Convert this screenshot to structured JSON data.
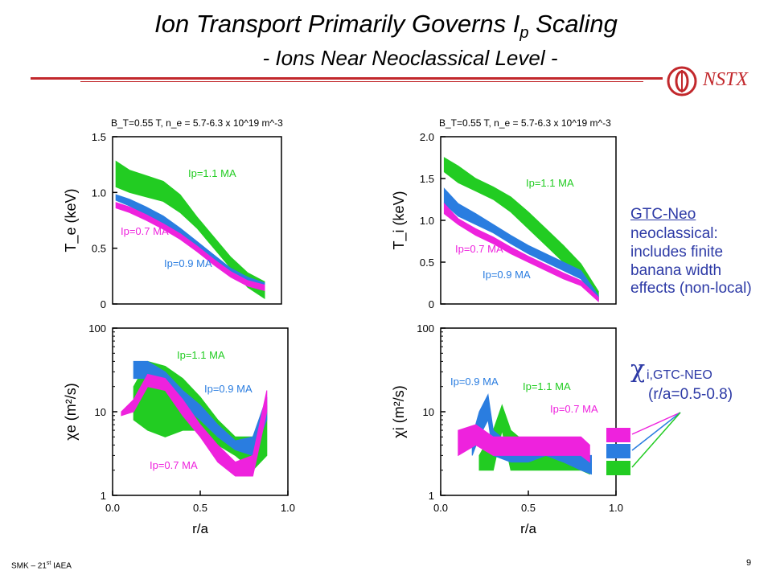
{
  "slide": {
    "title_main": "Ion Transport Primarily Governs I",
    "title_sub": "p",
    "title_tail": " Scaling",
    "subtitle": "- Ions Near Neoclassical Level -",
    "logo_text": "NSTX",
    "footer_left_a": "SMK – 21",
    "footer_left_sup": "st",
    "footer_left_b": " IAEA",
    "page_number": "9"
  },
  "annotation": {
    "gtc_heading": "GTC-Neo",
    "gtc_body": "neoclassical: includes finite banana width effects (non-local)",
    "chi_symbol": "χ",
    "chi_subscript": "i,GTC-NEO",
    "chi_range": "(r/a=0.5-0.8)"
  },
  "colors": {
    "ip07": "#ee22dd",
    "ip09": "#2a7de0",
    "ip11": "#22cc22",
    "text_blue": "#2d3aa6",
    "accent_red": "#c2282c"
  },
  "chart_data": [
    {
      "id": "te",
      "type": "area",
      "header": "B_T=0.55 T, n_e = 5.7-6.3 x 10^19 m^-3",
      "xlabel": "",
      "ylabel": "T_e (keV)",
      "xlim": [
        0,
        1
      ],
      "ylim": [
        0,
        1.5
      ],
      "yscale": "linear",
      "yticks": [
        "0",
        "0.5",
        "1.0",
        "1.5"
      ],
      "xticks": [],
      "series": [
        {
          "name": "Ip=1.1 MA",
          "color": "#22cc22",
          "x": [
            0.02,
            0.1,
            0.2,
            0.3,
            0.4,
            0.5,
            0.6,
            0.7,
            0.8,
            0.9
          ],
          "lower": [
            1.05,
            1.0,
            0.96,
            0.92,
            0.82,
            0.68,
            0.5,
            0.32,
            0.15,
            0.05
          ],
          "upper": [
            1.28,
            1.2,
            1.15,
            1.1,
            0.98,
            0.78,
            0.6,
            0.42,
            0.28,
            0.2
          ]
        },
        {
          "name": "Ip=0.9 MA",
          "color": "#2a7de0",
          "x": [
            0.02,
            0.1,
            0.2,
            0.3,
            0.4,
            0.5,
            0.6,
            0.7,
            0.8,
            0.9
          ],
          "lower": [
            0.93,
            0.88,
            0.8,
            0.72,
            0.62,
            0.5,
            0.38,
            0.26,
            0.18,
            0.14
          ],
          "upper": [
            0.98,
            0.94,
            0.87,
            0.79,
            0.68,
            0.56,
            0.44,
            0.32,
            0.24,
            0.19
          ]
        },
        {
          "name": "Ip=0.7 MA",
          "color": "#ee22dd",
          "x": [
            0.02,
            0.1,
            0.2,
            0.3,
            0.4,
            0.5,
            0.6,
            0.7,
            0.8,
            0.9
          ],
          "lower": [
            0.86,
            0.82,
            0.75,
            0.67,
            0.58,
            0.47,
            0.35,
            0.24,
            0.16,
            0.12
          ],
          "upper": [
            0.91,
            0.87,
            0.8,
            0.72,
            0.63,
            0.52,
            0.4,
            0.29,
            0.21,
            0.17
          ]
        }
      ],
      "annotations": [
        "Ip=1.1 MA",
        "Ip=0.7 MA",
        "Ip=0.9 MA"
      ]
    },
    {
      "id": "ti",
      "type": "area",
      "header": "B_T=0.55 T, n_e = 5.7-6.3 x 10^19 m^-3",
      "xlabel": "",
      "ylabel": "T_i (keV)",
      "xlim": [
        0,
        1
      ],
      "ylim": [
        0,
        2.0
      ],
      "yscale": "linear",
      "yticks": [
        "0",
        "0.5",
        "1.0",
        "1.5",
        "2.0"
      ],
      "xticks": [],
      "series": [
        {
          "name": "Ip=1.1 MA",
          "color": "#22cc22",
          "x": [
            0.02,
            0.1,
            0.2,
            0.3,
            0.4,
            0.5,
            0.6,
            0.7,
            0.8,
            0.9
          ],
          "lower": [
            1.58,
            1.45,
            1.35,
            1.25,
            1.1,
            0.9,
            0.7,
            0.5,
            0.3,
            0.05
          ],
          "upper": [
            1.75,
            1.65,
            1.5,
            1.4,
            1.28,
            1.1,
            0.9,
            0.7,
            0.48,
            0.15
          ]
        },
        {
          "name": "Ip=0.9 MA",
          "color": "#2a7de0",
          "x": [
            0.02,
            0.1,
            0.2,
            0.3,
            0.4,
            0.5,
            0.6,
            0.7,
            0.8,
            0.9
          ],
          "lower": [
            1.2,
            1.05,
            0.95,
            0.85,
            0.72,
            0.6,
            0.5,
            0.4,
            0.3,
            0.05
          ],
          "upper": [
            1.38,
            1.2,
            1.08,
            0.95,
            0.82,
            0.7,
            0.6,
            0.5,
            0.4,
            0.1
          ]
        },
        {
          "name": "Ip=0.7 MA",
          "color": "#ee22dd",
          "x": [
            0.02,
            0.1,
            0.2,
            0.3,
            0.4,
            0.5,
            0.6,
            0.7,
            0.8,
            0.9
          ],
          "lower": [
            1.08,
            0.95,
            0.82,
            0.72,
            0.6,
            0.5,
            0.4,
            0.3,
            0.22,
            0.03
          ],
          "upper": [
            1.2,
            1.02,
            0.9,
            0.8,
            0.68,
            0.57,
            0.47,
            0.37,
            0.28,
            0.08
          ]
        }
      ],
      "annotations": [
        "Ip=1.1 MA",
        "Ip=0.7 MA",
        "Ip=0.9 MA"
      ]
    },
    {
      "id": "chie",
      "type": "area",
      "xlabel": "r/a",
      "ylabel": "χe (m²/s)",
      "xlim": [
        0,
        1
      ],
      "ylim": [
        1,
        100
      ],
      "yscale": "log",
      "yticks": [
        "1",
        "10",
        "100"
      ],
      "xticks": [
        "0.0",
        "0.5",
        "1.0"
      ],
      "series": [
        {
          "name": "Ip=1.1 MA",
          "color": "#22cc22",
          "x": [
            0.12,
            0.2,
            0.3,
            0.4,
            0.5,
            0.6,
            0.7,
            0.8,
            0.88
          ],
          "lower": [
            8,
            6,
            5,
            6,
            6,
            4,
            3,
            2,
            3
          ],
          "upper": [
            20,
            40,
            35,
            25,
            15,
            8,
            5,
            5,
            12
          ]
        },
        {
          "name": "Ip=0.9 MA",
          "color": "#2a7de0",
          "x": [
            0.12,
            0.2,
            0.3,
            0.4,
            0.5,
            0.6,
            0.7,
            0.8,
            0.88
          ],
          "lower": [
            25,
            25,
            18,
            12,
            8,
            5,
            3.5,
            3,
            8
          ],
          "upper": [
            40,
            40,
            30,
            18,
            12,
            7,
            4.5,
            5,
            15
          ]
        },
        {
          "name": "Ip=0.7 MA",
          "color": "#ee22dd",
          "x": [
            0.05,
            0.12,
            0.2,
            0.3,
            0.4,
            0.5,
            0.6,
            0.7,
            0.8,
            0.88
          ],
          "lower": [
            9,
            10,
            20,
            18,
            9,
            5,
            2.5,
            1.7,
            1.7,
            10
          ],
          "upper": [
            10,
            14,
            28,
            25,
            14,
            7,
            4,
            2.5,
            3,
            18
          ]
        }
      ],
      "annotations": [
        "Ip=1.1 MA",
        "Ip=0.9 MA",
        "Ip=0.7 MA"
      ]
    },
    {
      "id": "chii",
      "type": "area",
      "xlabel": "r/a",
      "ylabel": "χi (m²/s)",
      "xlim": [
        0,
        1
      ],
      "ylim": [
        1,
        100
      ],
      "yscale": "log",
      "yticks": [
        "1",
        "10",
        "100"
      ],
      "xticks": [
        "0.0",
        "0.5",
        "1.0"
      ],
      "series": [
        {
          "name": "Ip=1.1 MA",
          "color": "#22cc22",
          "x": [
            0.22,
            0.3,
            0.35,
            0.4,
            0.5,
            0.6,
            0.7,
            0.8,
            0.85
          ],
          "lower": [
            2,
            2,
            6,
            2,
            2,
            2,
            2,
            2,
            1.8
          ],
          "upper": [
            3,
            6,
            12,
            6,
            4,
            3,
            3,
            3,
            3
          ]
        },
        {
          "name": "Ip=0.9 MA",
          "color": "#2a7de0",
          "x": [
            0.18,
            0.22,
            0.27,
            0.3,
            0.4,
            0.5,
            0.6,
            0.7,
            0.8,
            0.86
          ],
          "lower": [
            3,
            5,
            8,
            3,
            2.5,
            2.5,
            3,
            2.5,
            2,
            1.8
          ],
          "upper": [
            5,
            10,
            16,
            6,
            4,
            3.5,
            4,
            3.5,
            3,
            3
          ]
        },
        {
          "name": "Ip=0.7 MA",
          "color": "#ee22dd",
          "x": [
            0.1,
            0.2,
            0.3,
            0.4,
            0.5,
            0.6,
            0.7,
            0.8,
            0.85
          ],
          "lower": [
            3,
            4,
            3,
            3,
            3,
            3,
            3,
            3,
            2.5
          ],
          "upper": [
            6,
            7,
            5,
            5,
            5,
            5,
            5,
            5,
            4
          ]
        }
      ],
      "annotations": [
        "Ip=0.9 MA",
        "Ip=1.1 MA",
        "Ip=0.7 MA"
      ]
    }
  ]
}
